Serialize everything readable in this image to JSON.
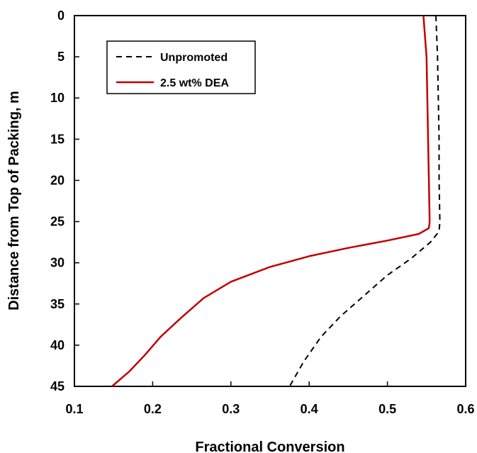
{
  "chart_data": {
    "type": "line",
    "title": "",
    "xlabel": "Fractional Conversion",
    "ylabel": "Distance from Top of Packing, m",
    "xlim": [
      0.1,
      0.6
    ],
    "ylim": [
      0,
      45
    ],
    "y_inverted": true,
    "x_ticks": [
      "0.1",
      "0.2",
      "0.3",
      "0.4",
      "0.5",
      "0.6"
    ],
    "y_ticks": [
      "0",
      "5",
      "10",
      "15",
      "20",
      "25",
      "30",
      "35",
      "40",
      "45"
    ],
    "grid": false,
    "legend_position": "top-left",
    "series": [
      {
        "name": "Unpromoted",
        "color": "#000000",
        "style": "dashed",
        "points": [
          [
            0.562,
            0
          ],
          [
            0.564,
            5
          ],
          [
            0.565,
            10
          ],
          [
            0.566,
            15
          ],
          [
            0.566,
            20
          ],
          [
            0.567,
            25
          ],
          [
            0.566,
            26.2
          ],
          [
            0.555,
            27.5
          ],
          [
            0.53,
            29.5
          ],
          [
            0.5,
            31.5
          ],
          [
            0.47,
            34
          ],
          [
            0.44,
            36.5
          ],
          [
            0.415,
            39
          ],
          [
            0.393,
            42
          ],
          [
            0.375,
            45
          ]
        ]
      },
      {
        "name": "2.5 wt% DEA",
        "color": "#c00000",
        "style": "solid",
        "points": [
          [
            0.546,
            0
          ],
          [
            0.55,
            5
          ],
          [
            0.551,
            10
          ],
          [
            0.552,
            15
          ],
          [
            0.553,
            20
          ],
          [
            0.554,
            25
          ],
          [
            0.553,
            25.8
          ],
          [
            0.54,
            26.5
          ],
          [
            0.5,
            27.3
          ],
          [
            0.45,
            28.2
          ],
          [
            0.4,
            29.2
          ],
          [
            0.35,
            30.5
          ],
          [
            0.3,
            32.3
          ],
          [
            0.265,
            34.3
          ],
          [
            0.235,
            36.8
          ],
          [
            0.21,
            39
          ],
          [
            0.19,
            41.2
          ],
          [
            0.17,
            43.2
          ],
          [
            0.148,
            45
          ]
        ]
      }
    ]
  }
}
